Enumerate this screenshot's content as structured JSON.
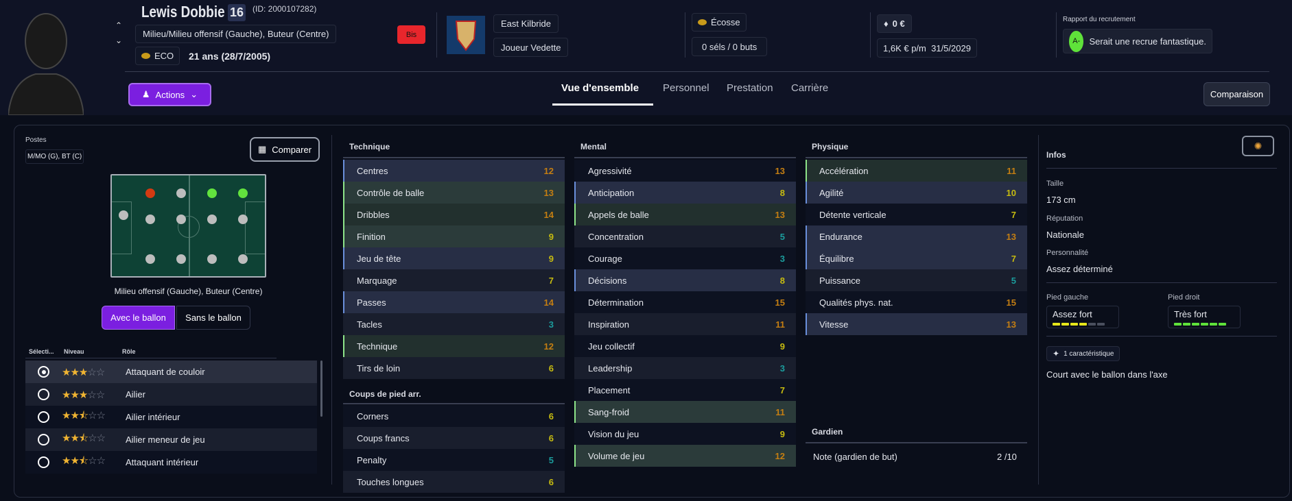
{
  "player": {
    "name": "Lewis Dobbie",
    "number": "16",
    "id_text": "(ID: 2000107282)",
    "positions_long": "Milieu/Milieu offensif (Gauche), Buteur (Centre)",
    "nation_code": "ECO",
    "age": "21 ans (28/7/2005)",
    "badge": "Bis",
    "club": "East Kilbride",
    "status": "Joueur Vedette",
    "nation": "Écosse",
    "caps": "0 séls / 0 buts",
    "value": "0 €",
    "wage": "1,6K € p/m",
    "contract_end": "31/5/2029",
    "scout_label": "Rapport du recrutement",
    "scout_grade": "A-",
    "scout_text": "Serait une recrue fantastique."
  },
  "colors": {
    "accent": "#7b1fe0",
    "grade": "#5fe23a",
    "badge": "#e8262c"
  },
  "toolbar": {
    "actions_label": "Actions",
    "compare_label": "Comparaison"
  },
  "tabs": [
    {
      "label": "Vue d'ensemble",
      "active": true
    },
    {
      "label": "Personnel"
    },
    {
      "label": "Prestation"
    },
    {
      "label": "Carrière"
    }
  ],
  "left": {
    "postes_label": "Postes",
    "postes_value": "M/MO (G), BT (C)",
    "compare_label": "Comparer",
    "pitch_caption": "Milieu offensif (Gauche), Buteur (Centre)",
    "pitch_dot_states": [
      "red",
      "grey",
      "green",
      "green",
      "grey",
      "grey",
      "grey",
      "grey",
      "grey",
      "green",
      "grey",
      "grey",
      "grey",
      "grey"
    ],
    "toggle": [
      "Avec le ballon",
      "Sans le ballon"
    ],
    "table_headers": [
      "Sélecti...",
      "Niveau",
      "Rôle"
    ],
    "roles": [
      {
        "name": "Attaquant de couloir",
        "stars": 3,
        "selected": true
      },
      {
        "name": "Ailier",
        "stars": 3
      },
      {
        "name": "Ailier intérieur",
        "stars": 2.5
      },
      {
        "name": "Ailier meneur de jeu",
        "stars": 2.5
      },
      {
        "name": "Attaquant intérieur",
        "stars": 2.5
      }
    ]
  },
  "attributes": {
    "technique": {
      "title": "Technique",
      "rows": [
        {
          "name": "Centres",
          "value": 12,
          "hl": "blue"
        },
        {
          "name": "Contrôle de balle",
          "value": 13,
          "hl": "green"
        },
        {
          "name": "Dribbles",
          "value": 14,
          "hl": "green"
        },
        {
          "name": "Finition",
          "value": 9,
          "hl": "green"
        },
        {
          "name": "Jeu de tête",
          "value": 9,
          "hl": "blue"
        },
        {
          "name": "Marquage",
          "value": 7,
          "hl": ""
        },
        {
          "name": "Passes",
          "value": 14,
          "hl": "blue"
        },
        {
          "name": "Tacles",
          "value": 3,
          "hl": ""
        },
        {
          "name": "Technique",
          "value": 12,
          "hl": "green"
        },
        {
          "name": "Tirs de loin",
          "value": 6,
          "hl": ""
        }
      ]
    },
    "set_pieces": {
      "title": "Coups de pied arr.",
      "rows": [
        {
          "name": "Corners",
          "value": 6,
          "hl": ""
        },
        {
          "name": "Coups francs",
          "value": 6,
          "hl": ""
        },
        {
          "name": "Penalty",
          "value": 5,
          "hl": ""
        },
        {
          "name": "Touches longues",
          "value": 6,
          "hl": ""
        }
      ]
    },
    "mental": {
      "title": "Mental",
      "rows": [
        {
          "name": "Agressivité",
          "value": 13,
          "hl": ""
        },
        {
          "name": "Anticipation",
          "value": 8,
          "hl": "blue"
        },
        {
          "name": "Appels de balle",
          "value": 13,
          "hl": "green"
        },
        {
          "name": "Concentration",
          "value": 5,
          "hl": ""
        },
        {
          "name": "Courage",
          "value": 3,
          "hl": ""
        },
        {
          "name": "Décisions",
          "value": 8,
          "hl": "blue"
        },
        {
          "name": "Détermination",
          "value": 15,
          "hl": ""
        },
        {
          "name": "Inspiration",
          "value": 11,
          "hl": ""
        },
        {
          "name": "Jeu collectif",
          "value": 9,
          "hl": ""
        },
        {
          "name": "Leadership",
          "value": 3,
          "hl": ""
        },
        {
          "name": "Placement",
          "value": 7,
          "hl": ""
        },
        {
          "name": "Sang-froid",
          "value": 11,
          "hl": "green"
        },
        {
          "name": "Vision du jeu",
          "value": 9,
          "hl": ""
        },
        {
          "name": "Volume de jeu",
          "value": 12,
          "hl": "green"
        }
      ]
    },
    "physical": {
      "title": "Physique",
      "rows": [
        {
          "name": "Accélération",
          "value": 11,
          "hl": "green"
        },
        {
          "name": "Agilité",
          "value": 10,
          "hl": "blue"
        },
        {
          "name": "Détente verticale",
          "value": 7,
          "hl": ""
        },
        {
          "name": "Endurance",
          "value": 13,
          "hl": "blue"
        },
        {
          "name": "Équilibre",
          "value": 7,
          "hl": "blue"
        },
        {
          "name": "Puissance",
          "value": 5,
          "hl": ""
        },
        {
          "name": "Qualités phys. nat.",
          "value": 15,
          "hl": ""
        },
        {
          "name": "Vitesse",
          "value": 13,
          "hl": "blue"
        }
      ]
    },
    "goalkeeper": {
      "title": "Gardien",
      "label": "Note (gardien de but)",
      "value": "2 /10"
    }
  },
  "infos": {
    "title": "Infos",
    "height_label": "Taille",
    "height": "173 cm",
    "reputation_label": "Réputation",
    "reputation": "Nationale",
    "personality_label": "Personnalité",
    "personality": "Assez déterminé",
    "left_foot_label": "Pied gauche",
    "left_foot": "Assez fort",
    "left_foot_level": 4,
    "right_foot_label": "Pied droit",
    "right_foot": "Très fort",
    "right_foot_level": 6,
    "foot_max": 6,
    "traits_label": "1 caractéristique",
    "trait": "Court avec le ballon dans l'axe"
  }
}
